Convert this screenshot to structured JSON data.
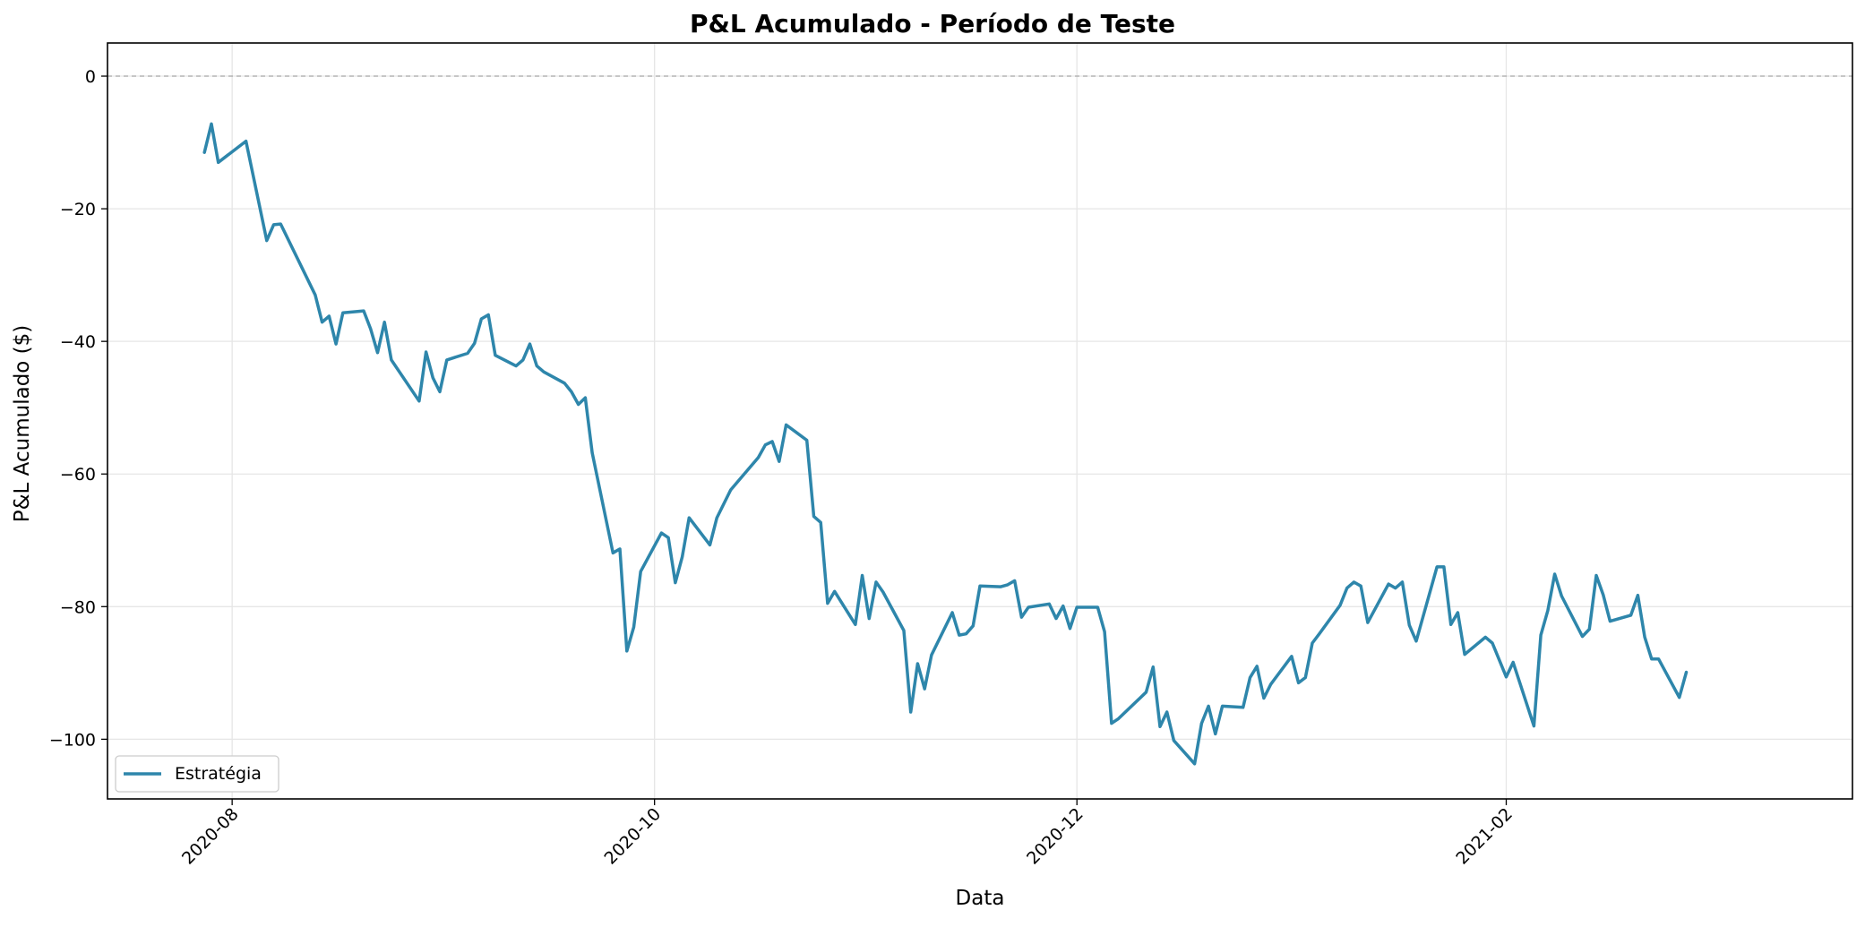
{
  "chart_data": {
    "type": "line",
    "title": "P&L Acumulado - Período de Teste",
    "xlabel": "Data",
    "ylabel": "P&L Acumulado ($)",
    "x_range": [
      "2020-07-14",
      "2021-03-23"
    ],
    "ylim": [
      -109,
      5
    ],
    "x_ticks": [
      "2020-08-01",
      "2020-10-01",
      "2020-12-01",
      "2021-02-01"
    ],
    "x_tick_labels": [
      "2020-08",
      "2020-10",
      "2020-12",
      "2021-02"
    ],
    "y_ticks": [
      0,
      -20,
      -40,
      -60,
      -80,
      -100
    ],
    "y_tick_labels": [
      "0",
      "−20",
      "−40",
      "−60",
      "−80",
      "−100"
    ],
    "reference_line": 0,
    "grid": true,
    "legend_position": "lower-left",
    "line_color": "#2e86ab",
    "series": [
      {
        "name": "Estratégia",
        "color": "#2e86ab",
        "points": [
          [
            "2020-07-28",
            -11.5
          ],
          [
            "2020-07-29",
            -7.2
          ],
          [
            "2020-07-30",
            -13.0
          ],
          [
            "2020-08-03",
            -9.8
          ],
          [
            "2020-08-06",
            -24.8
          ],
          [
            "2020-08-07",
            -22.4
          ],
          [
            "2020-08-08",
            -22.3
          ],
          [
            "2020-08-13",
            -33.0
          ],
          [
            "2020-08-14",
            -37.1
          ],
          [
            "2020-08-15",
            -36.2
          ],
          [
            "2020-08-16",
            -40.4
          ],
          [
            "2020-08-17",
            -35.7
          ],
          [
            "2020-08-20",
            -35.4
          ],
          [
            "2020-08-21",
            -38.1
          ],
          [
            "2020-08-22",
            -41.7
          ],
          [
            "2020-08-23",
            -37.1
          ],
          [
            "2020-08-24",
            -42.8
          ],
          [
            "2020-08-28",
            -49.0
          ],
          [
            "2020-08-29",
            -41.6
          ],
          [
            "2020-08-30",
            -45.5
          ],
          [
            "2020-08-31",
            -47.6
          ],
          [
            "2020-09-01",
            -42.8
          ],
          [
            "2020-09-04",
            -41.8
          ],
          [
            "2020-09-05",
            -40.3
          ],
          [
            "2020-09-06",
            -36.6
          ],
          [
            "2020-09-07",
            -36.0
          ],
          [
            "2020-09-08",
            -42.1
          ],
          [
            "2020-09-11",
            -43.7
          ],
          [
            "2020-09-12",
            -42.8
          ],
          [
            "2020-09-13",
            -40.4
          ],
          [
            "2020-09-14",
            -43.7
          ],
          [
            "2020-09-15",
            -44.6
          ],
          [
            "2020-09-18",
            -46.3
          ],
          [
            "2020-09-19",
            -47.6
          ],
          [
            "2020-09-20",
            -49.5
          ],
          [
            "2020-09-21",
            -48.5
          ],
          [
            "2020-09-22",
            -56.8
          ],
          [
            "2020-09-25",
            -71.9
          ],
          [
            "2020-09-26",
            -71.3
          ],
          [
            "2020-09-27",
            -86.7
          ],
          [
            "2020-09-28",
            -83.1
          ],
          [
            "2020-09-29",
            -74.7
          ],
          [
            "2020-10-02",
            -68.9
          ],
          [
            "2020-10-03",
            -69.6
          ],
          [
            "2020-10-04",
            -76.4
          ],
          [
            "2020-10-05",
            -72.5
          ],
          [
            "2020-10-06",
            -66.6
          ],
          [
            "2020-10-09",
            -70.7
          ],
          [
            "2020-10-10",
            -66.6
          ],
          [
            "2020-10-12",
            -62.4
          ],
          [
            "2020-10-16",
            -57.5
          ],
          [
            "2020-10-17",
            -55.6
          ],
          [
            "2020-10-18",
            -55.1
          ],
          [
            "2020-10-19",
            -58.1
          ],
          [
            "2020-10-20",
            -52.6
          ],
          [
            "2020-10-23",
            -54.9
          ],
          [
            "2020-10-24",
            -66.4
          ],
          [
            "2020-10-25",
            -67.3
          ],
          [
            "2020-10-26",
            -79.5
          ],
          [
            "2020-10-27",
            -77.7
          ],
          [
            "2020-10-30",
            -82.7
          ],
          [
            "2020-10-31",
            -75.3
          ],
          [
            "2020-11-01",
            -81.8
          ],
          [
            "2020-11-02",
            -76.3
          ],
          [
            "2020-11-03",
            -77.8
          ],
          [
            "2020-11-06",
            -83.6
          ],
          [
            "2020-11-07",
            -95.9
          ],
          [
            "2020-11-08",
            -88.6
          ],
          [
            "2020-11-09",
            -92.4
          ],
          [
            "2020-11-10",
            -87.3
          ],
          [
            "2020-11-13",
            -80.9
          ],
          [
            "2020-11-14",
            -84.3
          ],
          [
            "2020-11-15",
            -84.1
          ],
          [
            "2020-11-16",
            -82.9
          ],
          [
            "2020-11-17",
            -76.9
          ],
          [
            "2020-11-20",
            -77.0
          ],
          [
            "2020-11-21",
            -76.7
          ],
          [
            "2020-11-22",
            -76.1
          ],
          [
            "2020-11-23",
            -81.6
          ],
          [
            "2020-11-24",
            -80.1
          ],
          [
            "2020-11-27",
            -79.6
          ],
          [
            "2020-11-28",
            -81.8
          ],
          [
            "2020-11-29",
            -79.9
          ],
          [
            "2020-11-30",
            -83.3
          ],
          [
            "2020-12-01",
            -80.1
          ],
          [
            "2020-12-04",
            -80.1
          ],
          [
            "2020-12-05",
            -83.8
          ],
          [
            "2020-12-06",
            -97.6
          ],
          [
            "2020-12-07",
            -96.9
          ],
          [
            "2020-12-11",
            -92.9
          ],
          [
            "2020-12-12",
            -89.1
          ],
          [
            "2020-12-13",
            -98.1
          ],
          [
            "2020-12-14",
            -95.9
          ],
          [
            "2020-12-15",
            -100.2
          ],
          [
            "2020-12-18",
            -103.7
          ],
          [
            "2020-12-19",
            -97.6
          ],
          [
            "2020-12-20",
            -95.0
          ],
          [
            "2020-12-21",
            -99.2
          ],
          [
            "2020-12-22",
            -95.0
          ],
          [
            "2020-12-25",
            -95.2
          ],
          [
            "2020-12-26",
            -90.7
          ],
          [
            "2020-12-27",
            -89.0
          ],
          [
            "2020-12-28",
            -93.8
          ],
          [
            "2020-12-29",
            -91.7
          ],
          [
            "2021-01-01",
            -87.5
          ],
          [
            "2021-01-02",
            -91.5
          ],
          [
            "2021-01-03",
            -90.7
          ],
          [
            "2021-01-04",
            -85.5
          ],
          [
            "2021-01-05",
            -84.1
          ],
          [
            "2021-01-08",
            -79.8
          ],
          [
            "2021-01-09",
            -77.2
          ],
          [
            "2021-01-10",
            -76.3
          ],
          [
            "2021-01-11",
            -76.9
          ],
          [
            "2021-01-12",
            -82.4
          ],
          [
            "2021-01-15",
            -76.6
          ],
          [
            "2021-01-16",
            -77.2
          ],
          [
            "2021-01-17",
            -76.3
          ],
          [
            "2021-01-18",
            -82.8
          ],
          [
            "2021-01-19",
            -85.2
          ],
          [
            "2021-01-22",
            -74.0
          ],
          [
            "2021-01-23",
            -74.0
          ],
          [
            "2021-01-24",
            -82.7
          ],
          [
            "2021-01-25",
            -80.9
          ],
          [
            "2021-01-26",
            -87.2
          ],
          [
            "2021-01-29",
            -84.6
          ],
          [
            "2021-01-30",
            -85.5
          ],
          [
            "2021-02-01",
            -90.6
          ],
          [
            "2021-02-02",
            -88.4
          ],
          [
            "2021-02-05",
            -98.0
          ],
          [
            "2021-02-06",
            -84.3
          ],
          [
            "2021-02-07",
            -80.6
          ],
          [
            "2021-02-08",
            -75.1
          ],
          [
            "2021-02-09",
            -78.4
          ],
          [
            "2021-02-12",
            -84.5
          ],
          [
            "2021-02-13",
            -83.4
          ],
          [
            "2021-02-14",
            -75.3
          ],
          [
            "2021-02-15",
            -78.2
          ],
          [
            "2021-02-16",
            -82.2
          ],
          [
            "2021-02-19",
            -81.3
          ],
          [
            "2021-02-20",
            -78.3
          ],
          [
            "2021-02-21",
            -84.6
          ],
          [
            "2021-02-22",
            -87.9
          ],
          [
            "2021-02-23",
            -87.9
          ],
          [
            "2021-02-26",
            -93.7
          ],
          [
            "2021-02-27",
            -89.9
          ]
        ]
      }
    ]
  }
}
